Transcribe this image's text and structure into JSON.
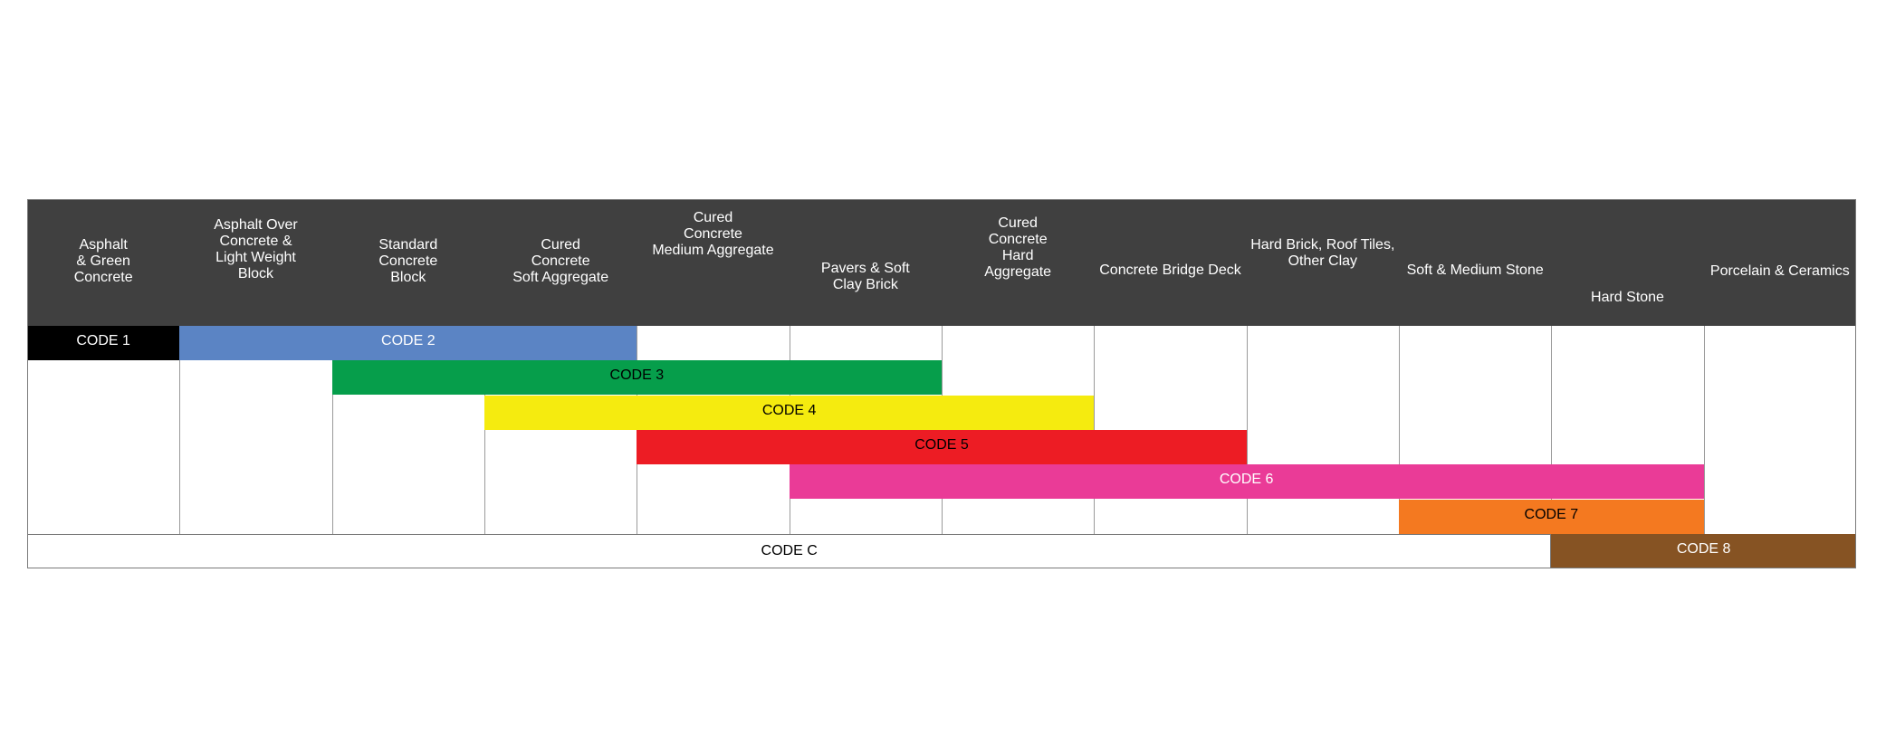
{
  "columns": [
    {
      "label": "Asphalt\n& Green\nConcrete"
    },
    {
      "label": "Asphalt Over\nConcrete &\nLight Weight\nBlock"
    },
    {
      "label": "Standard\nConcrete\nBlock"
    },
    {
      "label": "Cured\nConcrete\nSoft Aggregate"
    },
    {
      "label": "Cured\nConcrete\nMedium Aggregate"
    },
    {
      "label": "Pavers & Soft\nClay Brick"
    },
    {
      "label": "Cured\nConcrete\nHard\nAggregate"
    },
    {
      "label": "Concrete Bridge Deck"
    },
    {
      "label": "Hard Brick, Roof Tiles,\nOther Clay"
    },
    {
      "label": "Soft & Medium Stone"
    },
    {
      "label": "Hard Stone"
    },
    {
      "label": "Porcelain & Ceramics"
    }
  ],
  "codes": [
    {
      "label": "CODE 1",
      "start_col": 0,
      "end_col": 0,
      "row": 0,
      "color": "#000000",
      "text_color": "#ffffff"
    },
    {
      "label": "CODE 2",
      "start_col": 1,
      "end_col": 3,
      "row": 0,
      "color": "#5b84c4",
      "text_color": "#ffffff"
    },
    {
      "label": "CODE 3",
      "start_col": 2,
      "end_col": 5,
      "row": 1,
      "color": "#069e4b",
      "text_color": "#000000"
    },
    {
      "label": "CODE 4",
      "start_col": 3,
      "end_col": 6,
      "row": 2,
      "color": "#f5eb0f",
      "text_color": "#000000"
    },
    {
      "label": "CODE 5",
      "start_col": 4,
      "end_col": 7,
      "row": 3,
      "color": "#ed1c24",
      "text_color": "#000000"
    },
    {
      "label": "CODE 6",
      "start_col": 5,
      "end_col": 10,
      "row": 4,
      "color": "#ea3b97",
      "text_color": "#ffffff"
    },
    {
      "label": "CODE 7",
      "start_col": 9,
      "end_col": 10,
      "row": 5,
      "color": "#f47920",
      "text_color": "#000000"
    },
    {
      "label": "CODE 8",
      "start_col": 10,
      "end_col": 11,
      "row": 6,
      "color": "#865323",
      "text_color": "#ffffff"
    }
  ],
  "code_c": {
    "label": "CODE C",
    "start_col": 0,
    "end_col": 9,
    "row": 6
  }
}
